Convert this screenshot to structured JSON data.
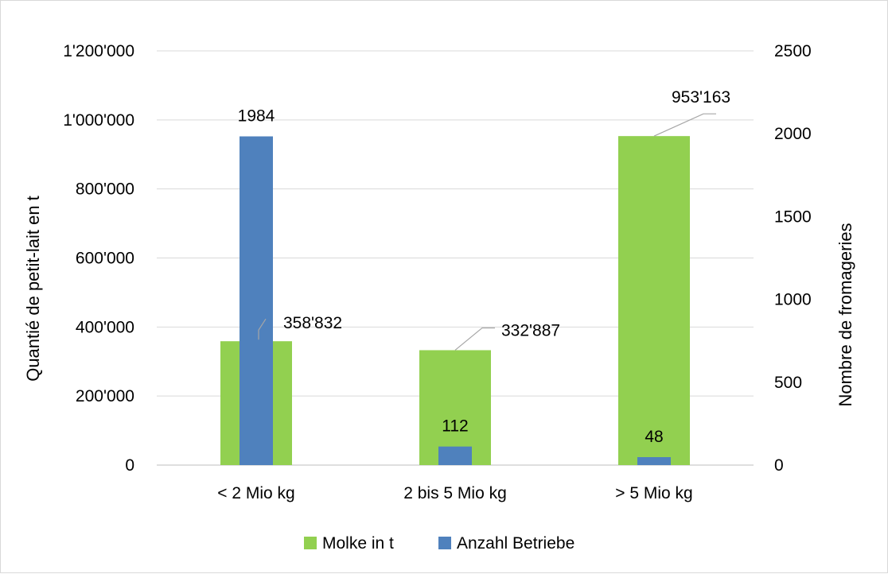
{
  "chart_data": {
    "type": "bar",
    "categories": [
      "< 2 Mio kg",
      "2 bis 5 Mio kg",
      "> 5 Mio kg"
    ],
    "series": [
      {
        "name": "Molke in t",
        "axis": "left",
        "color": "#92D050",
        "values": [
          358832,
          332887,
          953163
        ],
        "labels": [
          "358'832",
          "332'887",
          "953'163"
        ]
      },
      {
        "name": "Anzahl Betriebe",
        "axis": "right",
        "color": "#4F81BD",
        "values": [
          1984,
          112,
          48
        ],
        "labels": [
          "1984",
          "112",
          "48"
        ]
      }
    ],
    "ylabel": "Quantié de petit-lait en t",
    "y2label": "Nombre de fromageries",
    "ylim": [
      0,
      1200000
    ],
    "y2lim": [
      0,
      2500
    ],
    "yticks": [
      0,
      200000,
      400000,
      600000,
      800000,
      1000000,
      1200000
    ],
    "ytick_labels": [
      "0",
      "200'000",
      "400'000",
      "600'000",
      "800'000",
      "1'000'000",
      "1'200'000"
    ],
    "y2ticks": [
      0,
      500,
      1000,
      1500,
      2000,
      2500
    ],
    "y2tick_labels": [
      "0",
      "500",
      "1000",
      "1500",
      "2000",
      "2500"
    ],
    "grid": true,
    "legend": "bottom"
  }
}
